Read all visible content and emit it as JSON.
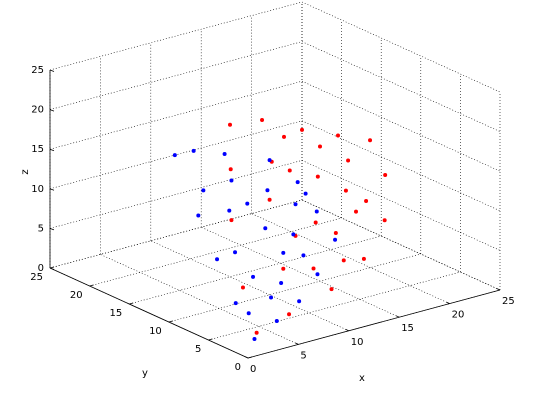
{
  "chart_data": {
    "type": "scatter3d",
    "xlabel": "x",
    "ylabel": "y",
    "zlabel": "z",
    "xlim": [
      0,
      25
    ],
    "ylim": [
      0,
      25
    ],
    "zlim": [
      0,
      25
    ],
    "xticks": [
      0,
      5,
      10,
      15,
      20,
      25
    ],
    "yticks": [
      0,
      5,
      10,
      15,
      20,
      25
    ],
    "zticks": [
      0,
      5,
      10,
      15,
      20,
      25
    ],
    "grid": true,
    "series": [
      {
        "color": "#ff0000",
        "x": [
          4,
          5,
          7,
          8.5,
          10,
          12,
          14,
          16,
          18,
          19.5,
          20,
          17,
          13,
          8,
          10,
          12,
          14,
          16,
          17,
          15,
          13,
          11,
          9,
          12,
          15,
          11,
          13,
          15,
          17,
          18
        ],
        "y": [
          4,
          7,
          11,
          13,
          15,
          13.5,
          11,
          9,
          7.5,
          7.5,
          8.2,
          7,
          6,
          5,
          10,
          10,
          9,
          8,
          8,
          8,
          8,
          8,
          7,
          7,
          7,
          11,
          12,
          10,
          9,
          8
        ],
        "z": [
          0,
          4,
          10,
          15,
          19.2,
          19.8,
          19,
          18.5,
          17.9,
          13,
          6.8,
          3.5,
          1.5,
          0.5,
          12,
          15,
          14,
          12,
          9,
          7,
          9,
          8,
          5,
          4,
          4,
          16,
          18,
          17,
          15,
          10
        ]
      },
      {
        "color": "#0000ff",
        "x": [
          3,
          3.5,
          4,
          4.5,
          5,
          6,
          7.5,
          10,
          12,
          13.5,
          15,
          12,
          9,
          6,
          5,
          6,
          7,
          8,
          9,
          10,
          11,
          6,
          8,
          5,
          7,
          11,
          4,
          7,
          12,
          9
        ],
        "y": [
          3,
          6,
          9,
          12,
          15.6,
          14.5,
          12.5,
          10,
          9,
          8.5,
          8.1,
          6.5,
          5,
          4,
          8,
          10,
          9,
          8,
          7,
          7,
          8,
          7,
          6,
          12,
          11,
          7,
          5,
          6,
          8,
          9
        ],
        "z": [
          0,
          3,
          7,
          11,
          16.8,
          17.5,
          17.5,
          17,
          14,
          10,
          6.1,
          3.5,
          1.8,
          0.8,
          8,
          12,
          13,
          10,
          7,
          9,
          12,
          5,
          4,
          14,
          15,
          6,
          2,
          2.5,
          13,
          14
        ]
      }
    ]
  }
}
